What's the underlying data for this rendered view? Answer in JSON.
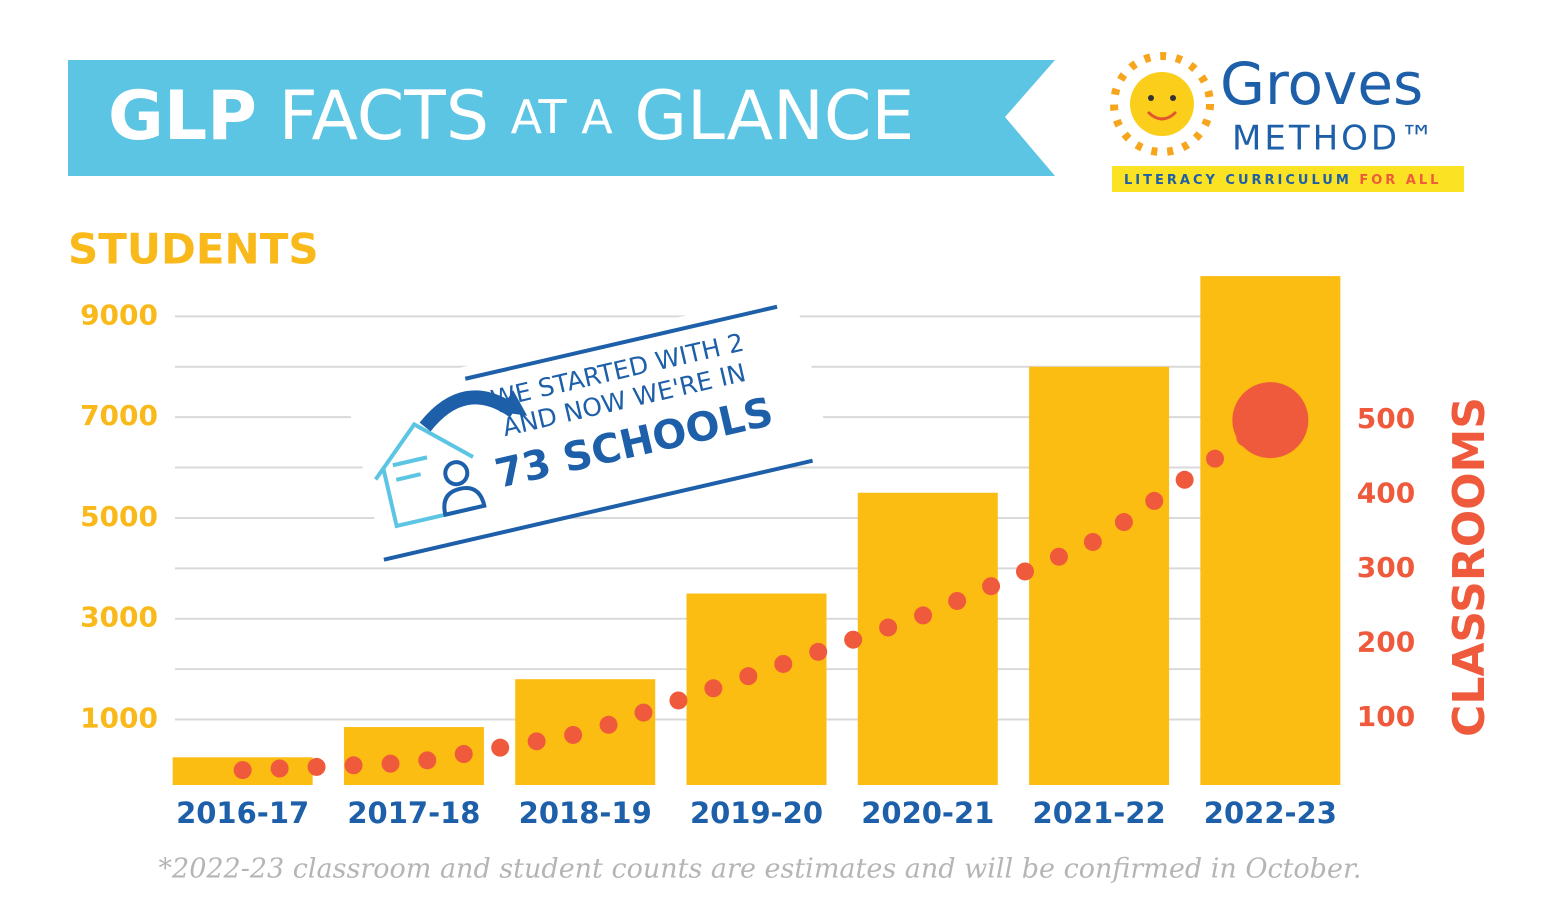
{
  "title_parts": [
    "GLP",
    "FACTS",
    "AT A",
    "GLANCE"
  ],
  "logo": {
    "name": "Groves",
    "sub": "METHOD™",
    "tagline": "LITERACY CURRICULUM",
    "tagline_end": "FOR ALL"
  },
  "chart_data": {
    "type": "bar",
    "ylabel": "STUDENTS",
    "y2label": "CLASSROOMS",
    "categories": [
      "2016-17",
      "2017-18",
      "2018-19",
      "2019-20",
      "2020-21",
      "2021-22",
      "2022-23"
    ],
    "series": [
      {
        "name": "Students",
        "type": "bar",
        "color": "#fbbd12",
        "values": [
          250,
          850,
          1800,
          3500,
          5500,
          8000,
          9800
        ]
      },
      {
        "name": "Classrooms",
        "type": "dotted-line",
        "axis": "y2",
        "color": "#ef5a3c",
        "values": [
          30,
          40,
          80,
          160,
          240,
          340,
          500
        ]
      }
    ],
    "ylim": [
      -300,
      10000
    ],
    "yticks": [
      1000,
      3000,
      5000,
      7000,
      9000
    ],
    "ygrid": [
      1000,
      2000,
      3000,
      4000,
      5000,
      6000,
      7000,
      8000,
      9000
    ],
    "y2lim": [
      10,
      707
    ],
    "y2ticks": [
      100,
      200,
      300,
      400,
      500
    ],
    "annotation": [
      "WE STARTED WITH 2",
      "AND NOW WE'RE IN",
      "73 SCHOOLS"
    ],
    "footnote": "*2022-23 classroom and student counts are estimates and will be confirmed in October."
  }
}
